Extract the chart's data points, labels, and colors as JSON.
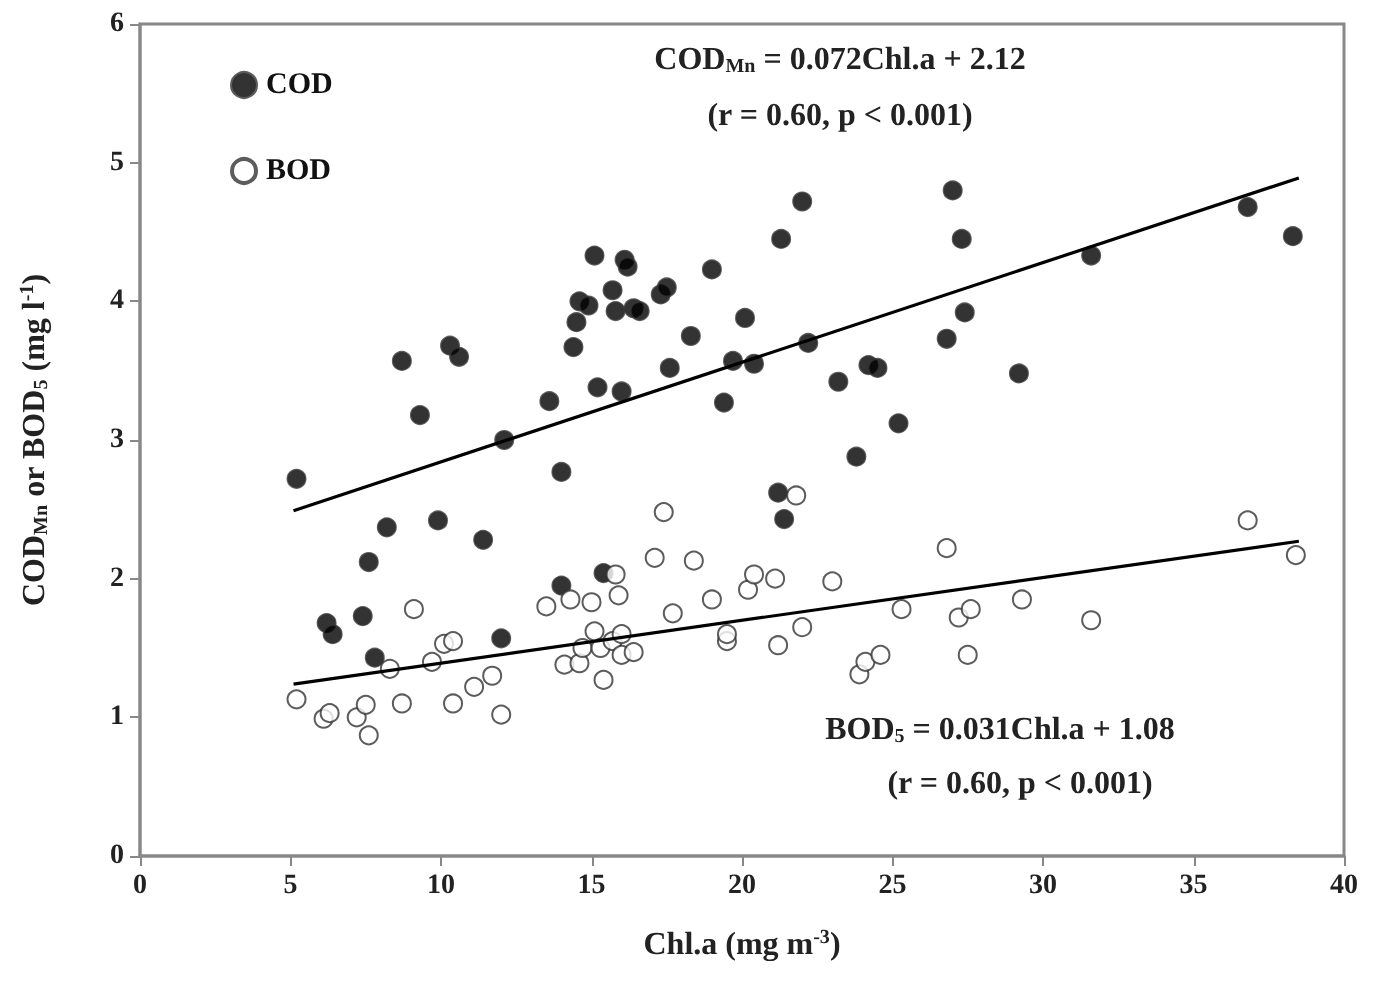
{
  "chart_data": {
    "type": "scatter",
    "xlabel": "Chl.a (mg m$^{-3}$)",
    "ylabel": "COD$_{Mn}$ or BOD$_{5}$ (mg l$^{-1}$)",
    "xlim": [
      0,
      40
    ],
    "xticks": [
      0,
      5,
      10,
      15,
      20,
      25,
      30,
      35,
      40
    ],
    "ylim": [
      0,
      6
    ],
    "yticks": [
      0,
      1,
      2,
      3,
      4,
      5,
      6
    ],
    "legend": "top left",
    "marker": "circle",
    "annotations": [
      "COD$_{Mn}$ = 0.072Chl.a + 2.12",
      "(r = 0.60, p < 0.001)",
      "BOD$_{5}$ = 0.031Chl.a + 1.08",
      "(r = 0.60, p < 0.001)"
    ],
    "series": [
      {
        "name": "COD",
        "color": "#000000",
        "x": [
          5.2,
          6.2,
          6.4,
          7.4,
          7.6,
          7.8,
          8.2,
          8.7,
          9.3,
          9.9,
          10.3,
          10.6,
          11.4,
          12.1,
          12.0,
          13.6,
          14.0,
          14.0,
          14.4,
          14.5,
          14.6,
          14.9,
          15.1,
          15.2,
          15.4,
          15.7,
          15.8,
          16.0,
          16.1,
          16.2,
          16.4,
          16.6,
          17.3,
          17.5,
          17.6,
          18.3,
          19.0,
          19.4,
          19.7,
          20.1,
          20.4,
          21.2,
          21.3,
          21.4,
          22.0,
          22.2,
          23.2,
          23.8,
          24.2,
          24.5,
          25.2,
          26.8,
          27.0,
          27.3,
          27.4,
          29.2,
          31.6,
          36.8,
          38.3
        ],
        "values": [
          2.72,
          1.68,
          1.6,
          1.73,
          2.12,
          1.43,
          2.37,
          3.57,
          3.18,
          2.42,
          3.68,
          3.6,
          2.28,
          3.0,
          1.57,
          3.28,
          1.95,
          2.77,
          3.67,
          3.85,
          4.0,
          3.97,
          4.33,
          3.38,
          2.04,
          4.08,
          3.93,
          3.35,
          4.3,
          4.25,
          3.95,
          3.93,
          4.05,
          4.1,
          3.52,
          3.75,
          4.23,
          3.27,
          3.57,
          3.88,
          3.55,
          2.62,
          4.45,
          2.43,
          4.72,
          3.7,
          3.42,
          2.88,
          3.54,
          3.52,
          3.12,
          3.73,
          4.8,
          4.45,
          3.92,
          3.48,
          4.33,
          4.68,
          4.47
        ]
      },
      {
        "name": "BOD",
        "color": "#ffffff",
        "x": [
          5.2,
          6.1,
          6.3,
          7.2,
          7.5,
          7.6,
          8.3,
          8.7,
          9.1,
          9.7,
          10.1,
          10.4,
          10.4,
          11.1,
          11.7,
          12.0,
          13.5,
          14.1,
          14.3,
          14.6,
          14.7,
          15.0,
          15.1,
          15.3,
          15.4,
          15.7,
          15.8,
          15.9,
          16.0,
          16.0,
          16.4,
          17.1,
          17.4,
          17.7,
          18.4,
          19.0,
          19.5,
          19.5,
          20.2,
          20.4,
          21.2,
          21.1,
          22.0,
          21.8,
          23.0,
          23.9,
          24.1,
          24.6,
          25.3,
          26.8,
          27.2,
          27.5,
          27.6,
          29.3,
          31.6,
          36.8,
          38.4
        ],
        "values": [
          1.13,
          0.99,
          1.03,
          1.0,
          1.09,
          0.87,
          1.35,
          1.1,
          1.78,
          1.4,
          1.53,
          1.55,
          1.1,
          1.22,
          1.3,
          1.02,
          1.8,
          1.38,
          1.85,
          1.39,
          1.5,
          1.83,
          1.62,
          1.5,
          1.27,
          1.55,
          2.03,
          1.88,
          1.45,
          1.6,
          1.47,
          2.15,
          2.48,
          1.75,
          2.13,
          1.85,
          1.55,
          1.6,
          1.92,
          2.03,
          1.52,
          2.0,
          1.65,
          2.6,
          1.98,
          1.31,
          1.4,
          1.45,
          1.78,
          2.22,
          1.72,
          1.45,
          1.78,
          1.85,
          1.7,
          2.42,
          2.17
        ]
      },
      {
        "type": "line",
        "color": "#000000",
        "marker": "none",
        "line_style": "solid",
        "x": [
          5.1,
          38.5
        ],
        "values": [
          2.49,
          4.89
        ]
      },
      {
        "type": "line",
        "color": "#000000",
        "marker": "none",
        "line_style": "solid",
        "x": [
          5.1,
          38.5
        ],
        "values": [
          1.24,
          2.27
        ]
      }
    ]
  }
}
